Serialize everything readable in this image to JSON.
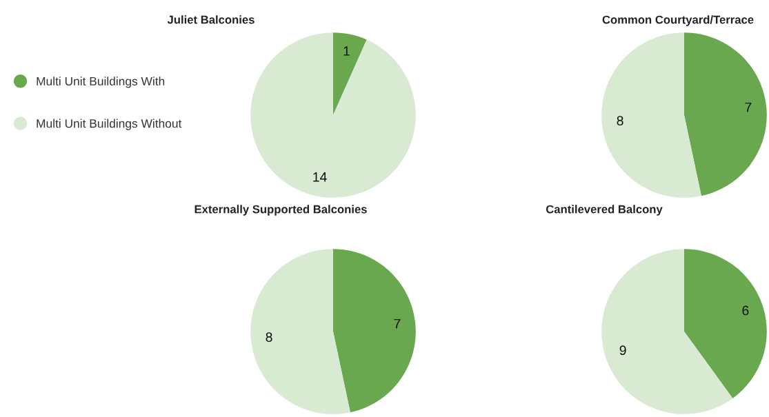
{
  "chart_data": [
    {
      "type": "pie",
      "title": "Juliet Balconies",
      "categories": [
        "Multi Unit Buildings With",
        "Multi Unit Buildings Without"
      ],
      "values": [
        1,
        14
      ],
      "colors": [
        "#6aa84f",
        "#d9ead3"
      ],
      "data_labels": true,
      "legend": "left"
    },
    {
      "type": "pie",
      "title": "Common Courtyard/Terrace",
      "categories": [
        null,
        null
      ],
      "values": [
        7,
        8
      ],
      "colors": [
        "#6aa84f",
        "#d9ead3"
      ],
      "data_labels": true
    },
    {
      "type": "pie",
      "title": "Externally Supported Balconies",
      "categories": [
        null,
        null
      ],
      "values": [
        7,
        8
      ],
      "colors": [
        "#6aa84f",
        "#d9ead3"
      ],
      "data_labels": true
    },
    {
      "type": "pie",
      "title": "Cantilevered Balcony",
      "categories": [
        null,
        null
      ],
      "values": [
        6,
        9
      ],
      "colors": [
        "#6aa84f",
        "#d9ead3"
      ],
      "data_labels": true
    }
  ]
}
